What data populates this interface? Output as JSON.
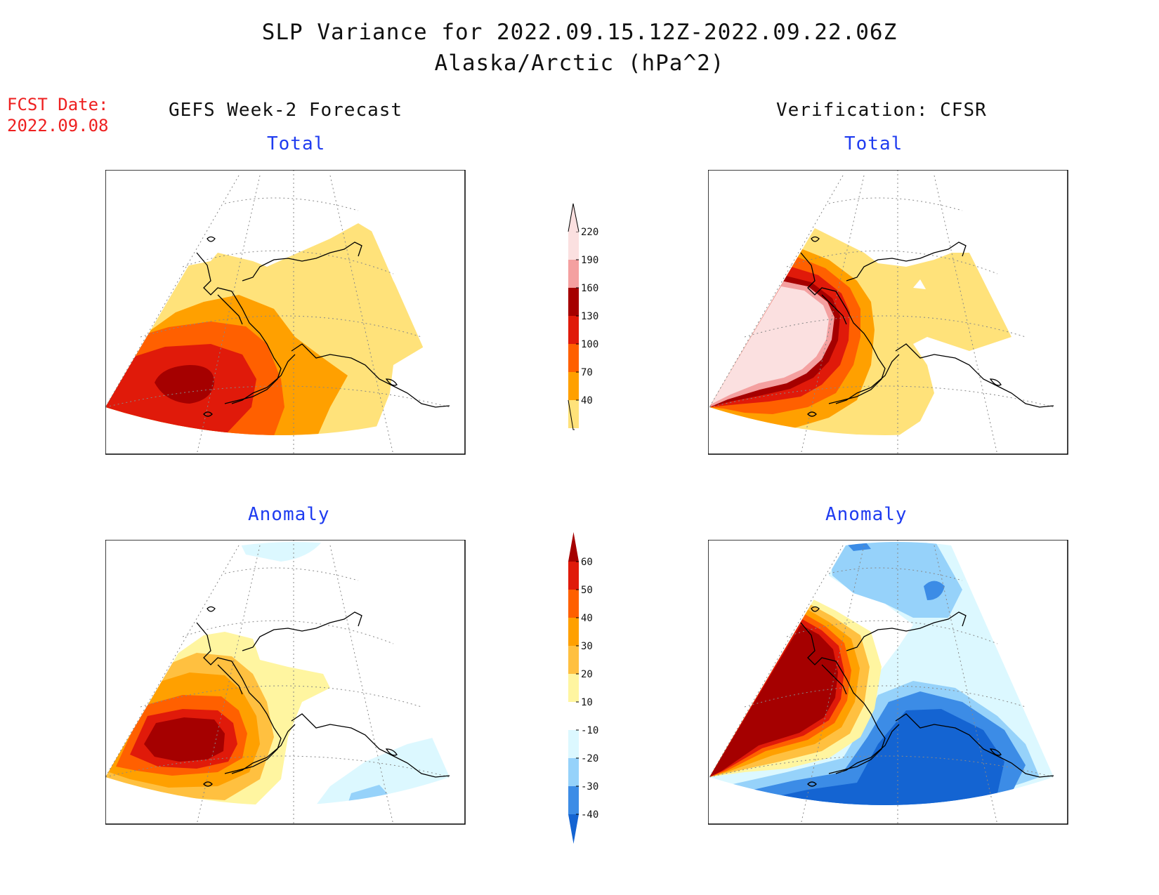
{
  "title": {
    "line1": "SLP Variance for 2022.09.15.12Z-2022.09.22.06Z",
    "line2": "Alaska/Arctic (hPa^2)"
  },
  "fcst": {
    "label": "FCST Date:",
    "date": "2022.09.08"
  },
  "columns": {
    "left": "GEFS Week-2 Forecast",
    "right": "Verification: CFSR"
  },
  "panels": {
    "top_left": {
      "subtitle": "Total"
    },
    "top_right": {
      "subtitle": "Total"
    },
    "bottom_left": {
      "subtitle": "Anomaly"
    },
    "bottom_right": {
      "subtitle": "Anomaly"
    }
  },
  "colorbars": {
    "total": {
      "labels": [
        "40",
        "70",
        "100",
        "130",
        "160",
        "190",
        "220"
      ],
      "colors": [
        "#ffe27a",
        "#ffa000",
        "#ff6000",
        "#e01a0a",
        "#a50000",
        "#f4a0a0",
        "#fbe0e0"
      ]
    },
    "anomaly": {
      "labels": [
        "-40",
        "-30",
        "-20",
        "-10",
        "10",
        "20",
        "30",
        "40",
        "50",
        "60"
      ],
      "colors": [
        "#1464d2",
        "#3c8ce6",
        "#96d2fa",
        "#dcf8ff",
        "#ffffff",
        "#fff5a0",
        "#ffc040",
        "#ffa000",
        "#ff6000",
        "#e01a0a",
        "#a50000"
      ]
    }
  },
  "colors": {
    "title_red": "#ee2020",
    "subtitle_blue": "#1f3cf0"
  }
}
